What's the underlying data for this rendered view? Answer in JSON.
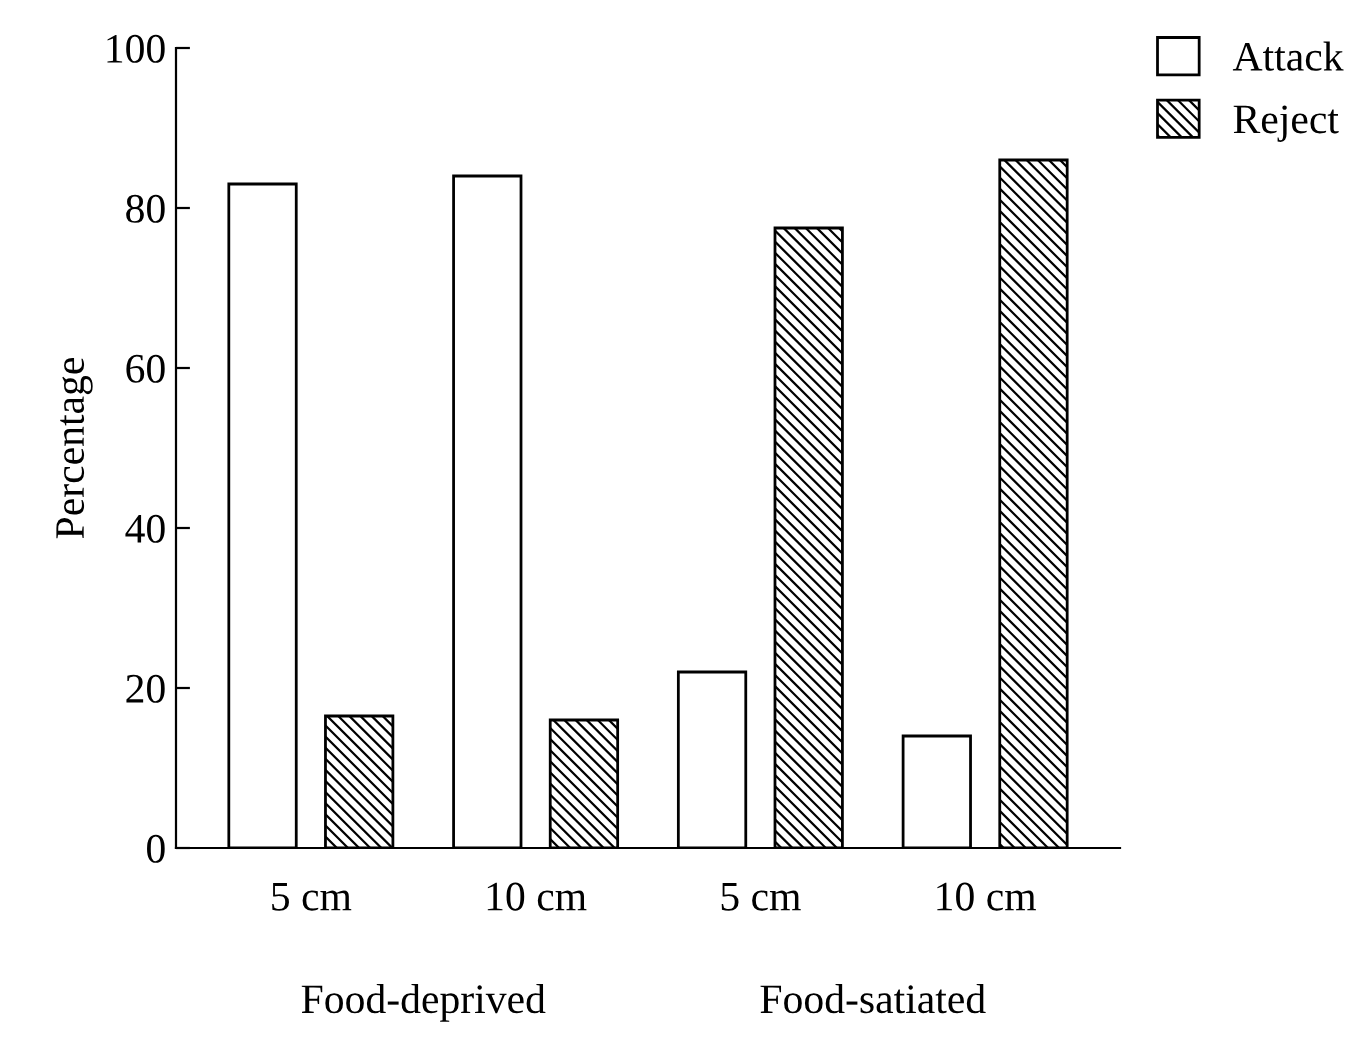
{
  "chart_data": {
    "type": "bar",
    "ylabel": "Percentage",
    "categories": [
      "5 cm",
      "10 cm",
      "5 cm",
      "10 cm"
    ],
    "series": [
      {
        "name": "Attack",
        "color": "#ffffff",
        "values": [
          83,
          84,
          22,
          14
        ]
      },
      {
        "name": "Reject",
        "color": "#000000",
        "values": [
          16.5,
          16,
          77.5,
          86
        ]
      }
    ],
    "ylim": [
      0,
      100
    ],
    "yticks": [
      0,
      20,
      40,
      60,
      80,
      100
    ],
    "grid": false,
    "legend": "top right",
    "annotations": [
      "Food-deprived",
      "Food-satiated"
    ]
  }
}
